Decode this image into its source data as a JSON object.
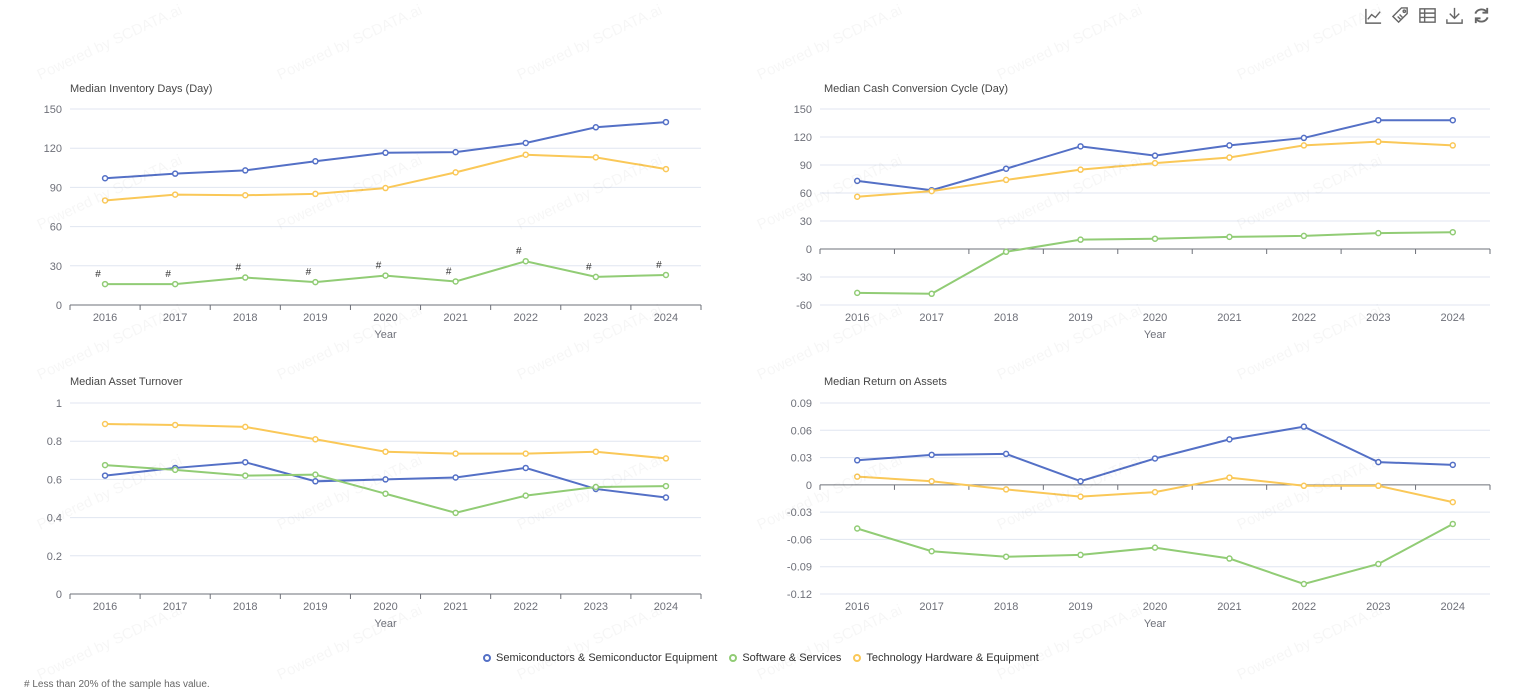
{
  "toolbar": {
    "icons": [
      "line-chart-icon",
      "tag-icon",
      "data-table-icon",
      "download-icon",
      "refresh-icon"
    ]
  },
  "watermark": "Powered by SCDATA.ai",
  "legend": [
    {
      "name": "Semiconductors & Semiconductor Equipment",
      "color": "#5470c6"
    },
    {
      "name": "Software & Services",
      "color": "#91cc75"
    },
    {
      "name": "Technology Hardware & Equipment",
      "color": "#fac858"
    }
  ],
  "footnote": "# Less than 20% of the sample has value.",
  "chart_data": [
    {
      "type": "line",
      "title": "Median Inventory Days (Day)",
      "xlabel": "Year",
      "categories": [
        "2016",
        "2017",
        "2018",
        "2019",
        "2020",
        "2021",
        "2022",
        "2023",
        "2024"
      ],
      "ylim": [
        0,
        150
      ],
      "yticks": [
        0,
        30,
        60,
        90,
        120,
        150
      ],
      "grid": true,
      "series": [
        {
          "name": "Semiconductors & Semiconductor Equipment",
          "values": [
            97,
            100.5,
            103,
            110,
            116.5,
            117,
            124,
            136,
            140
          ]
        },
        {
          "name": "Software & Services",
          "values": [
            16,
            16,
            21,
            17.5,
            22.5,
            18,
            33.5,
            21.5,
            23
          ],
          "point_labels": [
            "#",
            "#",
            "#",
            "#",
            "#",
            "#",
            "#",
            "#",
            "#"
          ]
        },
        {
          "name": "Technology Hardware & Equipment",
          "values": [
            80,
            84.5,
            84,
            85,
            89.5,
            101.5,
            115,
            113,
            104
          ]
        }
      ]
    },
    {
      "type": "line",
      "title": "Median Cash Conversion Cycle (Day)",
      "xlabel": "Year",
      "categories": [
        "2016",
        "2017",
        "2018",
        "2019",
        "2020",
        "2021",
        "2022",
        "2023",
        "2024"
      ],
      "ylim": [
        -60,
        150
      ],
      "yticks": [
        -60,
        -30,
        0,
        30,
        60,
        90,
        120,
        150
      ],
      "grid": true,
      "series": [
        {
          "name": "Semiconductors & Semiconductor Equipment",
          "values": [
            73,
            63,
            86,
            110,
            100,
            111,
            119,
            138,
            138
          ]
        },
        {
          "name": "Software & Services",
          "values": [
            -47,
            -48,
            -3,
            10,
            11,
            13,
            14,
            17,
            18
          ]
        },
        {
          "name": "Technology Hardware & Equipment",
          "values": [
            56,
            62,
            74,
            85,
            92,
            98,
            111,
            115,
            111
          ]
        }
      ]
    },
    {
      "type": "line",
      "title": "Median Asset Turnover",
      "xlabel": "Year",
      "categories": [
        "2016",
        "2017",
        "2018",
        "2019",
        "2020",
        "2021",
        "2022",
        "2023",
        "2024"
      ],
      "ylim": [
        0,
        1
      ],
      "yticks": [
        0,
        0.2,
        0.4,
        0.6,
        0.8,
        1
      ],
      "grid": true,
      "series": [
        {
          "name": "Semiconductors & Semiconductor Equipment",
          "values": [
            0.62,
            0.66,
            0.69,
            0.59,
            0.6,
            0.61,
            0.66,
            0.55,
            0.505
          ]
        },
        {
          "name": "Software & Services",
          "values": [
            0.675,
            0.65,
            0.62,
            0.625,
            0.525,
            0.425,
            0.515,
            0.56,
            0.565
          ]
        },
        {
          "name": "Technology Hardware & Equipment",
          "values": [
            0.89,
            0.885,
            0.875,
            0.81,
            0.745,
            0.735,
            0.735,
            0.745,
            0.71
          ]
        }
      ]
    },
    {
      "type": "line",
      "title": "Median Return on Assets",
      "xlabel": "Year",
      "categories": [
        "2016",
        "2017",
        "2018",
        "2019",
        "2020",
        "2021",
        "2022",
        "2023",
        "2024"
      ],
      "ylim": [
        -0.12,
        0.09
      ],
      "yticks": [
        -0.12,
        -0.09,
        -0.06,
        -0.03,
        0,
        0.03,
        0.06,
        0.09
      ],
      "grid": true,
      "series": [
        {
          "name": "Semiconductors & Semiconductor Equipment",
          "values": [
            0.027,
            0.033,
            0.034,
            0.004,
            0.029,
            0.05,
            0.064,
            0.025,
            0.022
          ]
        },
        {
          "name": "Software & Services",
          "values": [
            -0.048,
            -0.073,
            -0.079,
            -0.077,
            -0.069,
            -0.081,
            -0.109,
            -0.087,
            -0.043
          ]
        },
        {
          "name": "Technology Hardware & Equipment",
          "values": [
            0.009,
            0.004,
            -0.005,
            -0.013,
            -0.008,
            0.008,
            -0.001,
            -0.001,
            -0.019
          ]
        }
      ]
    }
  ]
}
